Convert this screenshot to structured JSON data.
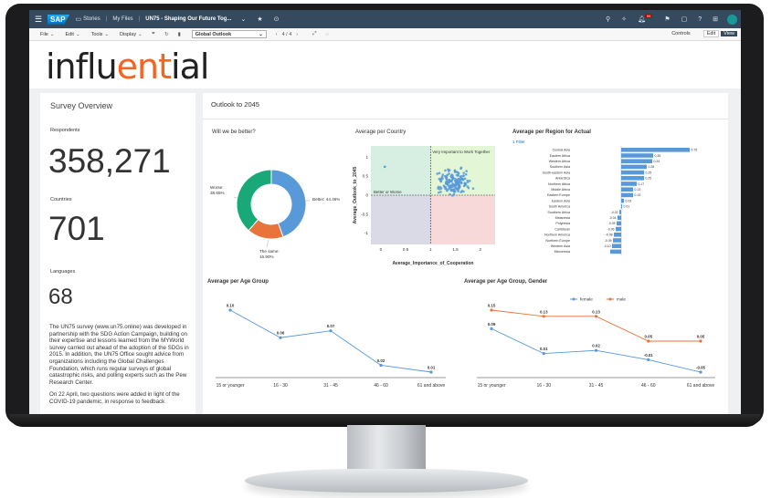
{
  "shell": {
    "nav_stories": "Stories",
    "nav_myfiles": "My Files",
    "title": "UN75 - Shaping Our Future Tog...",
    "notification_count": "99"
  },
  "toolbar": {
    "file": "File",
    "edit": "Edit",
    "tools": "Tools",
    "display": "Display",
    "page_select": "Global Outlook",
    "page_counter": "4 / 4",
    "controls": "Controls",
    "edit_btn": "Edit",
    "view_btn": "View"
  },
  "logo": {
    "part1": "influ",
    "accent": "ent",
    "part2": "ial"
  },
  "survey": {
    "title": "Survey Overview",
    "respondents_label": "Respondents",
    "respondents_value": "358,271",
    "countries_label": "Countries",
    "countries_value": "701",
    "languages_label": "Languages",
    "languages_value": "68",
    "paragraph1": "The UN75 survey (www.un75.online) was developed in partnership with the SDG Action Campaign, building on their expertise and lessons learned from the MYWorld survey carried out ahead of the adoption of the SDGs in 2015. In addition, the UN75 Office sought advice from organizations including the Global Challenges Foundation, which runs regular surveys of global catastrophic risks, and polling experts such as the Pew Research Center.",
    "paragraph2": "On 22 April, two questions were added in light of the COVID-19 pandemic, in response to feedback"
  },
  "outlook": {
    "title": "Outlook to 2045"
  },
  "chart_data": [
    {
      "type": "pie",
      "title": "Will we be better?",
      "slices": [
        {
          "label": "Better: 44.46%",
          "value": 44.46,
          "color": "#5899da"
        },
        {
          "label": "The same: 16.90%",
          "value": 16.9,
          "color": "#e8743b"
        },
        {
          "label": "Worse: 38.65%",
          "value": 38.65,
          "color": "#19a979"
        }
      ]
    },
    {
      "type": "scatter",
      "title": "Average per Country",
      "xlabel": "Average_Importance_of_Cooperation",
      "ylabel": "Average_Outlook_to_2045",
      "xlim": [
        -0.2,
        2.3
      ],
      "ylim": [
        -1.3,
        1.3
      ],
      "xticks": [
        "0",
        "0.5",
        "1",
        "1.5",
        "2"
      ],
      "yticks": [
        "1",
        "0.5",
        "0",
        "-0.5",
        "-1"
      ],
      "quadrant_labels": [
        "Very Important to Work Together",
        "Better or Worse"
      ]
    },
    {
      "type": "bar",
      "title": "Average per Region for Actual",
      "filter": "1 Filter",
      "categories": [
        "Central Asia",
        "Eastern Africa",
        "Western Africa",
        "Southern Asia",
        "South-eastern Asia",
        "Antarctica",
        "Northern Africa",
        "Middle Africa",
        "Eastern Europe",
        "Eastern Asia",
        "South America",
        "Southern Africa",
        "Melanesia",
        "Polynesia",
        "Caribbean",
        "Northern America",
        "Northern Europe",
        "Western Asia",
        "Micronesia"
      ],
      "values": [
        0.75,
        0.35,
        0.34,
        0.28,
        0.25,
        0.25,
        0.17,
        0.13,
        0.13,
        0.03,
        0.01,
        -0.02,
        -0.04,
        -0.05,
        -0.06,
        -0.08,
        -0.09,
        -0.1,
        -0.12
      ],
      "labels": [
        "0.75",
        "0.35",
        "0.34",
        "0.28",
        "0.25",
        "0.25",
        "0.17",
        "0.13",
        "0.13",
        "0.03",
        "0.01",
        "-0.02",
        "-0.04",
        "-0.05",
        "-0.06",
        "-0.08",
        "-0.09",
        "-0.10",
        ""
      ]
    },
    {
      "type": "line",
      "title": "Average per Age Group",
      "categories": [
        "15 or younger",
        "16 - 30",
        "31 - 45",
        "46 - 60",
        "61 and above"
      ],
      "values": [
        0.1,
        0.06,
        0.07,
        0.02,
        0.01
      ],
      "labels": [
        "0.10",
        "0.06",
        "0.07",
        "0.02",
        "0.01"
      ]
    },
    {
      "type": "line",
      "title": "Average per Age Group, Gender",
      "categories": [
        "15 or younger",
        "16 - 30",
        "31 - 45",
        "46 - 60",
        "61 and above"
      ],
      "series": [
        {
          "name": "female",
          "color": "#5899da",
          "values": [
            0.09,
            0.01,
            0.02,
            -0.01,
            -0.05
          ],
          "labels": [
            "0.09",
            "0.01",
            "0.02",
            "-0.01",
            "-0.05"
          ]
        },
        {
          "name": "male",
          "color": "#e8743b",
          "values": [
            0.15,
            0.13,
            0.13,
            0.05,
            0.05
          ],
          "labels": [
            "0.15",
            "0.13",
            "0.13",
            "0.05",
            "0.05"
          ]
        }
      ]
    }
  ]
}
